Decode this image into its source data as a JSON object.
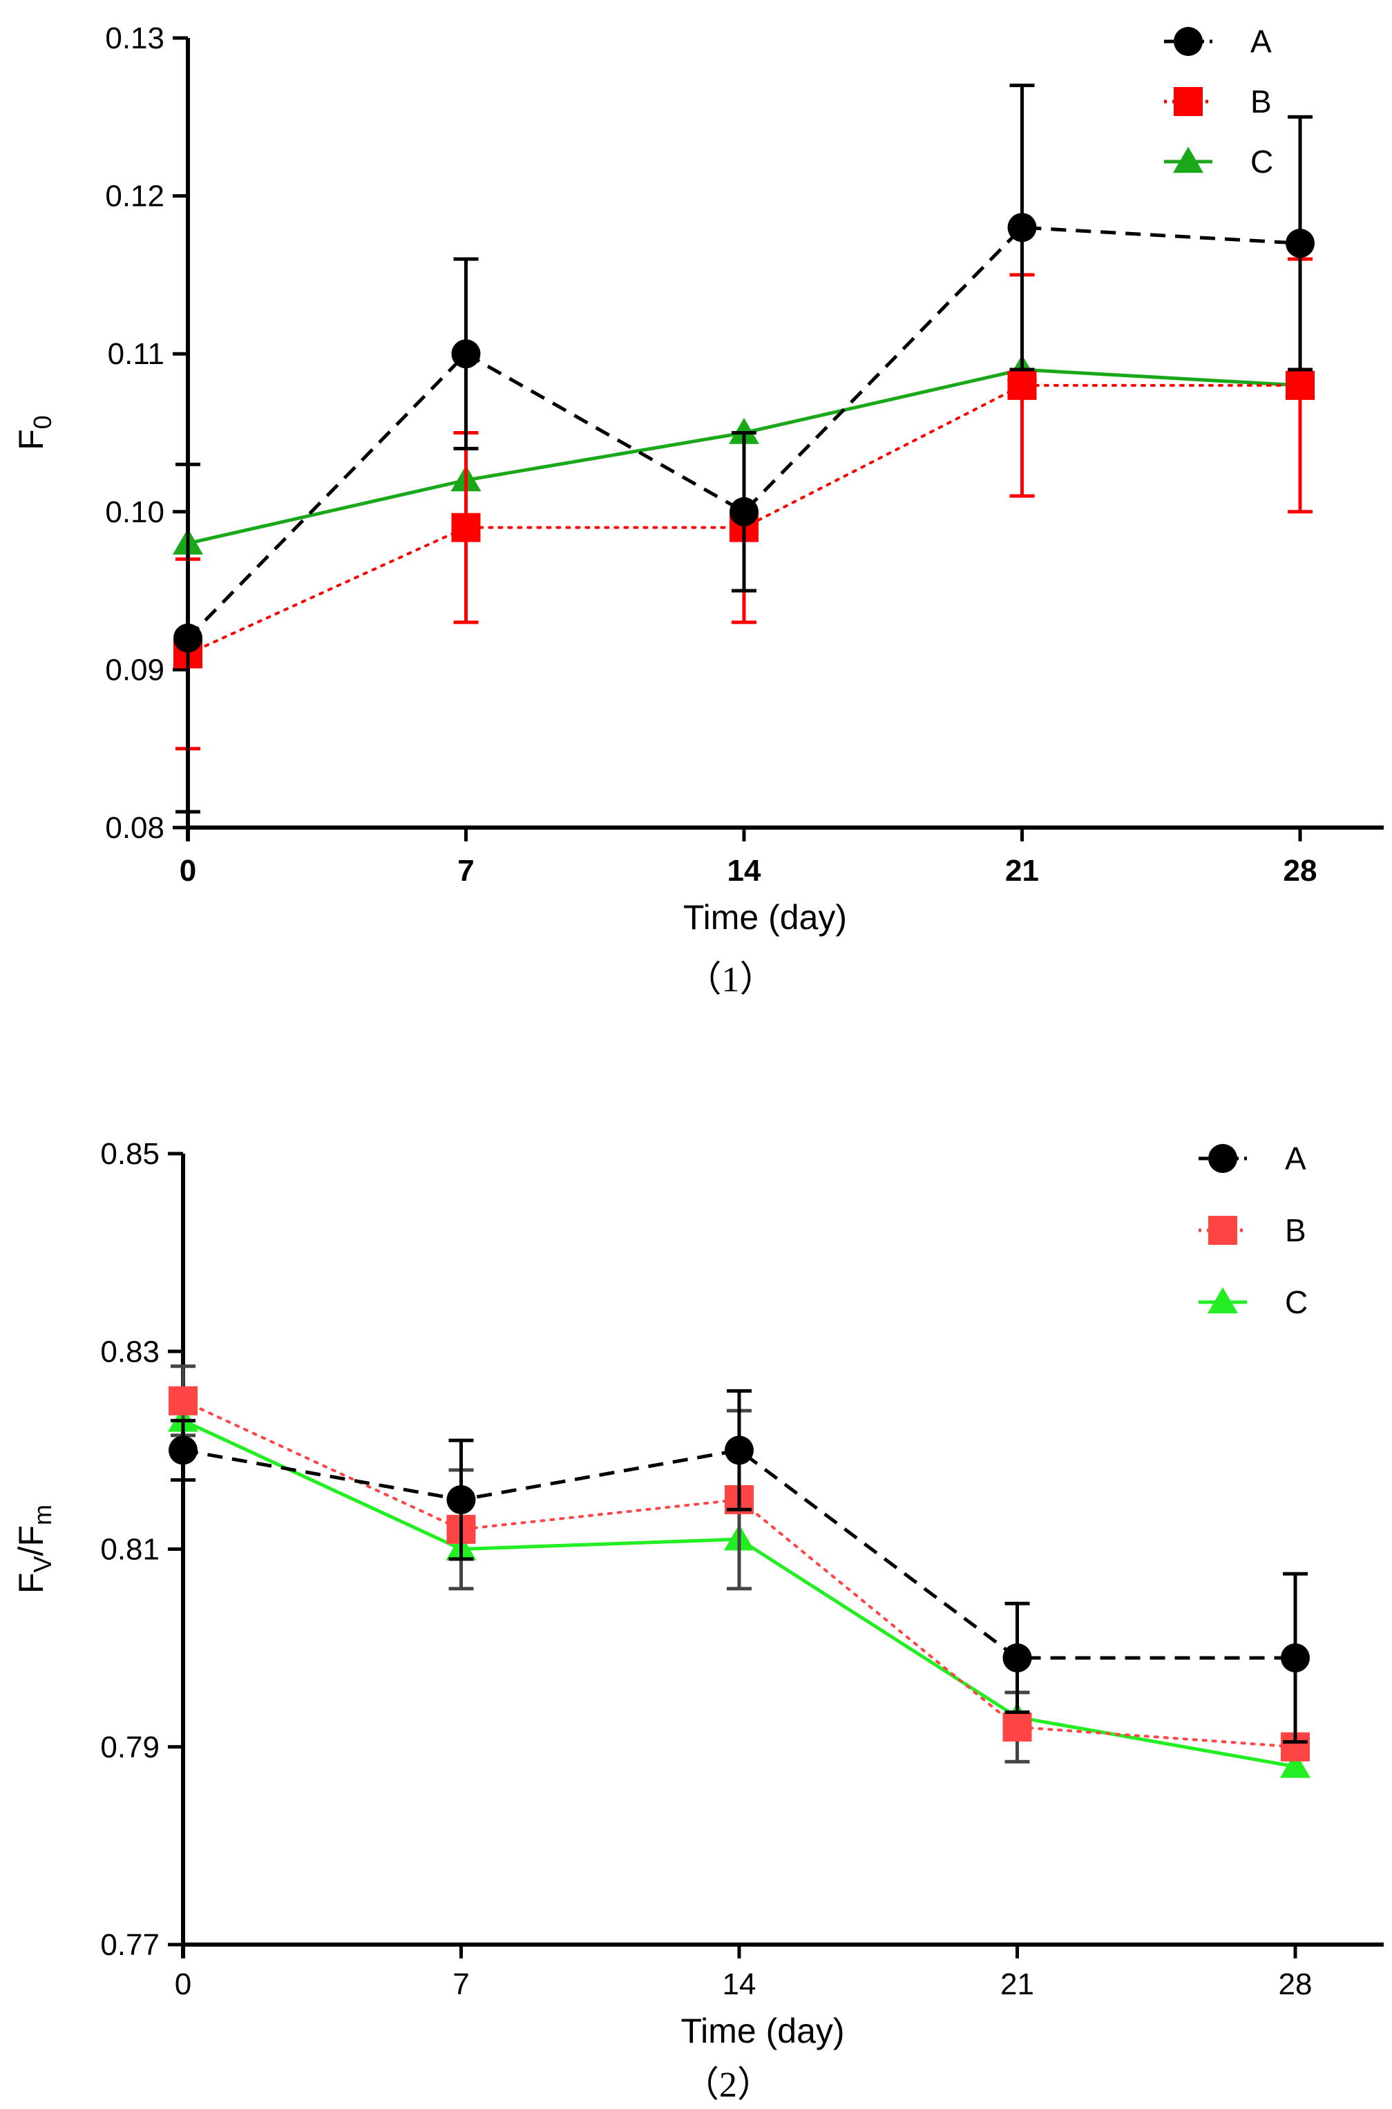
{
  "chart_data": [
    {
      "type": "line",
      "caption": "（1）",
      "xlabel": "Time (day)",
      "ylabel_main": "F",
      "ylabel_sub": "0",
      "categories": [
        0,
        7,
        14,
        21,
        28
      ],
      "x_tick_labels": [
        "0",
        "7",
        "14",
        "21",
        "28"
      ],
      "y_tick_labels": [
        "0.08",
        "0.09",
        "0.10",
        "0.11",
        "0.12",
        "0.13"
      ],
      "y_ticks": [
        0.08,
        0.09,
        0.1,
        0.11,
        0.12,
        0.13
      ],
      "ylim": [
        0.08,
        0.13
      ],
      "xlim": [
        0,
        30
      ],
      "x_tick_bold": true,
      "legend_position": "top-right",
      "series": [
        {
          "name": "A",
          "marker": "circle",
          "line": "dashed",
          "color": "#000000",
          "values": [
            0.092,
            0.11,
            0.1,
            0.118,
            0.117
          ],
          "errors": [
            0.011,
            0.006,
            0.005,
            0.009,
            0.008
          ]
        },
        {
          "name": "B",
          "marker": "square",
          "line": "dotted",
          "color": "#ff0000",
          "values": [
            0.091,
            0.099,
            0.099,
            0.108,
            0.108
          ],
          "errors": [
            0.006,
            0.006,
            0.006,
            0.007,
            0.008
          ]
        },
        {
          "name": "C",
          "marker": "triangle",
          "line": "solid",
          "color": "#1aa81a",
          "values": [
            0.098,
            0.102,
            0.105,
            0.109,
            0.108
          ],
          "errors": [
            0,
            0,
            0,
            0,
            0
          ]
        }
      ]
    },
    {
      "type": "line",
      "caption": "（2）",
      "xlabel": "Time (day)",
      "ylabel_main": "F",
      "ylabel_sub": "V",
      "ylabel_main2": "/F",
      "ylabel_sub2": "m",
      "categories": [
        0,
        7,
        14,
        21,
        28
      ],
      "x_tick_labels": [
        "0",
        "7",
        "14",
        "21",
        "28"
      ],
      "y_tick_labels": [
        "0.77",
        "0.79",
        "0.81",
        "0.83",
        "0.85"
      ],
      "y_ticks": [
        0.77,
        0.79,
        0.81,
        0.83,
        0.85
      ],
      "ylim": [
        0.77,
        0.85
      ],
      "xlim": [
        0,
        30
      ],
      "x_tick_bold": false,
      "legend_position": "top-right",
      "series": [
        {
          "name": "A",
          "marker": "circle",
          "line": "dashed",
          "color": "#000000",
          "values": [
            0.82,
            0.815,
            0.82,
            0.799,
            0.799
          ],
          "errors": [
            0.003,
            0.006,
            0.006,
            0.0055,
            0.0085
          ]
        },
        {
          "name": "B",
          "marker": "square",
          "line": "dotted",
          "color": "#ff4444",
          "values": [
            0.825,
            0.812,
            0.815,
            0.792,
            0.79
          ],
          "errors": [
            0.0035,
            0.006,
            0.009,
            0.0035,
            0.0
          ],
          "error_color": "#444444"
        },
        {
          "name": "C",
          "marker": "triangle",
          "line": "solid",
          "color": "#22ee22",
          "values": [
            0.823,
            0.81,
            0.811,
            0.793,
            0.788
          ],
          "errors": [
            0,
            0,
            0,
            0,
            0
          ]
        }
      ]
    }
  ]
}
